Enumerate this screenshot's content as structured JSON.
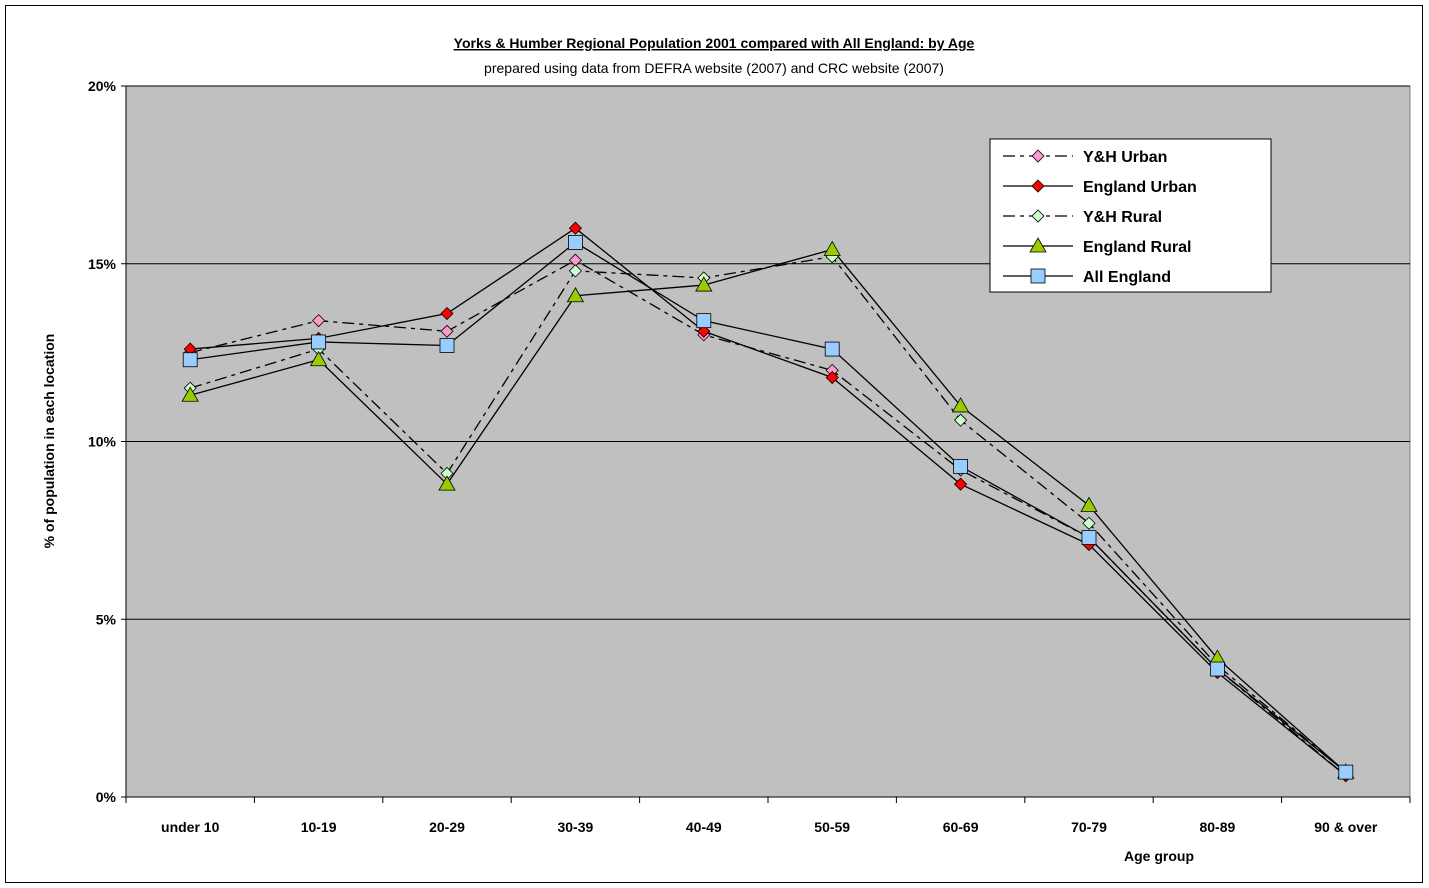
{
  "chart_data": {
    "type": "line",
    "title_underlined": "Yorks & Humber Regional Population 2001 compared with All England",
    "title_rest": ": by Age",
    "subtitle": "prepared using data from DEFRA website (2007) and CRC website (2007)",
    "xlabel": "Age group",
    "ylabel": "% of population in each location",
    "ylim": [
      0,
      20
    ],
    "yticks": [
      "0%",
      "5%",
      "10%",
      "15%",
      "20%"
    ],
    "ytick_values": [
      0,
      5,
      10,
      15,
      20
    ],
    "categories": [
      "under 10",
      "10-19",
      "20-29",
      "30-39",
      "40-49",
      "50-59",
      "60-69",
      "70-79",
      "80-89",
      "90 & over"
    ],
    "grid": "horizontal",
    "legend_position": "top-right",
    "plot_background": "#c0c0c0",
    "series": [
      {
        "name": "Y&H Urban",
        "marker": "diamond",
        "fill": "#ff99cc",
        "dash": "12,5,4,5",
        "values": [
          12.5,
          13.4,
          13.1,
          15.1,
          13.0,
          12.0,
          9.2,
          7.3,
          3.6,
          0.6
        ]
      },
      {
        "name": "England Urban",
        "marker": "diamond",
        "fill": "#ff0000",
        "dash": "",
        "values": [
          12.6,
          12.9,
          13.6,
          16.0,
          13.1,
          11.8,
          8.8,
          7.1,
          3.5,
          0.6
        ]
      },
      {
        "name": "Y&H Rural",
        "marker": "diamond",
        "fill": "#ccffcc",
        "dash": "12,5,4,5",
        "values": [
          11.5,
          12.6,
          9.1,
          14.8,
          14.6,
          15.2,
          10.6,
          7.7,
          3.7,
          0.7
        ]
      },
      {
        "name": "England Rural",
        "marker": "triangle",
        "fill": "#99cc00",
        "dash": "",
        "values": [
          11.3,
          12.3,
          8.8,
          14.1,
          14.4,
          15.4,
          11.0,
          8.2,
          3.9,
          0.7
        ]
      },
      {
        "name": "All England",
        "marker": "square",
        "fill": "#99ccff",
        "dash": "",
        "values": [
          12.3,
          12.8,
          12.7,
          15.6,
          13.4,
          12.6,
          9.3,
          7.3,
          3.6,
          0.7
        ]
      }
    ]
  }
}
